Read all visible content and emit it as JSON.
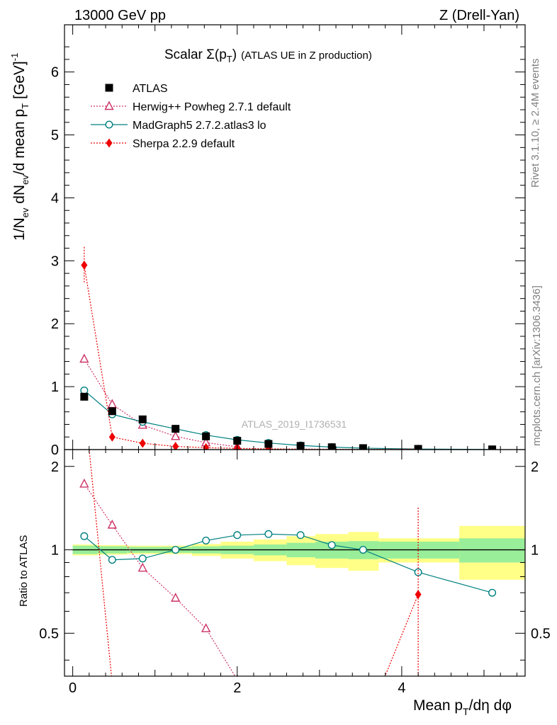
{
  "header": {
    "left": "13000 GeV pp",
    "right": "Z (Drell-Yan)"
  },
  "side_labels": {
    "rivet": "Rivet 3.1.10, ≥ 2.4M events",
    "mcplots": "mcplots.cern.ch [arXiv:1306.3436]"
  },
  "colors": {
    "atlas": "#000000",
    "herwig": "#cc3366",
    "madgraph": "#008080",
    "sherpa": "#ee0000",
    "band_inner": "#99ee99",
    "band_outer": "#ffff88"
  },
  "chart_data": [
    {
      "type": "scatter",
      "title": "Scalar Σ(p_T) (ATLAS UE in Z production)",
      "ylabel": "1/N_ev dN_ev/d mean p_T [GeV]^-1",
      "xlabel": "",
      "watermark": "ATLAS_2019_I1736531",
      "xlim": [
        -0.1,
        5.5
      ],
      "ylim": [
        0,
        6.75
      ],
      "yticks": [
        "0",
        "1",
        "2",
        "3",
        "4",
        "5",
        "6"
      ],
      "legend_position": "top-left",
      "series": [
        {
          "name": "ATLAS",
          "marker": "square",
          "x": [
            0.14,
            0.48,
            0.85,
            1.25,
            1.62,
            2.0,
            2.38,
            2.77,
            3.15,
            3.53,
            4.2,
            5.1
          ],
          "y": [
            0.84,
            0.61,
            0.48,
            0.33,
            0.21,
            0.14,
            0.09,
            0.058,
            0.037,
            0.023,
            0.011,
            0.003
          ]
        },
        {
          "name": "Herwig++ Powheg 2.7.1 default",
          "marker": "triangle",
          "x": [
            0.14,
            0.48,
            0.85,
            1.25,
            1.62,
            2.0
          ],
          "y": [
            1.44,
            0.72,
            0.39,
            0.21,
            0.11,
            0.045
          ]
        },
        {
          "name": "MadGraph5 2.7.2.atlas3 lo",
          "marker": "circle",
          "x": [
            0.14,
            0.48,
            0.85,
            1.25,
            1.62,
            2.0,
            2.38,
            2.77,
            3.15,
            3.53,
            4.2,
            5.1
          ],
          "y": [
            0.94,
            0.56,
            0.44,
            0.33,
            0.23,
            0.155,
            0.105,
            0.066,
            0.039,
            0.023,
            0.009,
            0.002
          ]
        },
        {
          "name": "Sherpa 2.2.9 default",
          "marker": "diamond",
          "x": [
            0.14,
            0.48,
            0.85,
            1.25,
            1.62,
            2.0,
            2.38,
            2.77,
            3.15,
            3.53,
            4.2
          ],
          "y": [
            2.93,
            0.2,
            0.1,
            0.05,
            0.03,
            0.02,
            0.012,
            0.008,
            0.005,
            0.003,
            0.008
          ]
        }
      ]
    },
    {
      "type": "line",
      "ylabel": "Ratio to ATLAS",
      "xlabel": "Mean p_T/dη dφ",
      "xlim": [
        -0.1,
        5.5
      ],
      "ylim": [
        0.35,
        2.3
      ],
      "xticks": [
        "0",
        "2",
        "4"
      ],
      "yticks": [
        "0.5",
        "1",
        "2"
      ],
      "bands": {
        "edges": [
          0.0,
          0.3,
          0.66,
          1.05,
          1.45,
          1.8,
          2.2,
          2.6,
          2.95,
          3.35,
          3.72,
          4.7,
          5.5
        ],
        "inner": [
          0.035,
          0.03,
          0.025,
          0.025,
          0.03,
          0.035,
          0.045,
          0.06,
          0.07,
          0.075,
          0.07,
          0.1
        ],
        "outer": [
          0.045,
          0.04,
          0.035,
          0.035,
          0.05,
          0.07,
          0.09,
          0.12,
          0.14,
          0.16,
          0.1,
          0.22
        ]
      },
      "series": [
        {
          "name": "Herwig++ Powheg 2.7.1 default",
          "x": [
            0.14,
            0.48,
            0.85,
            1.25,
            1.62,
            2.0
          ],
          "y": [
            1.73,
            1.23,
            0.86,
            0.67,
            0.52,
            0.34
          ]
        },
        {
          "name": "MadGraph5 2.7.2.atlas3 lo",
          "x": [
            0.14,
            0.48,
            0.85,
            1.25,
            1.62,
            2.0,
            2.38,
            2.77,
            3.15,
            3.53,
            4.2,
            5.1
          ],
          "y": [
            1.12,
            0.92,
            0.93,
            1.0,
            1.08,
            1.13,
            1.14,
            1.13,
            1.04,
            1.0,
            0.83,
            0.7
          ]
        },
        {
          "name": "Sherpa 2.2.9 default",
          "x": [
            0.14,
            0.48,
            4.2
          ],
          "y": [
            3.5,
            0.33,
            0.69
          ]
        }
      ]
    }
  ]
}
